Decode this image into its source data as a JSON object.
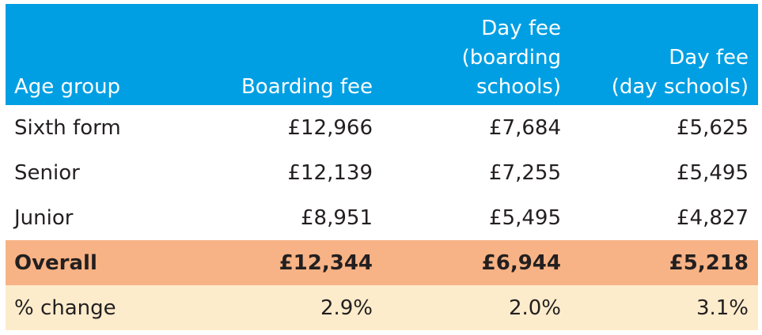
{
  "table": {
    "headers": [
      {
        "lines": [
          "Age group"
        ]
      },
      {
        "lines": [
          "Boarding fee"
        ]
      },
      {
        "lines": [
          "Day fee",
          "(boarding",
          "schools)"
        ]
      },
      {
        "lines": [
          "Day fee",
          "(day schools)"
        ]
      }
    ],
    "rows": [
      {
        "label": "Sixth form",
        "boarding_fee": "£12,966",
        "day_fee_boarding": "£7,684",
        "day_fee_day": "£5,625"
      },
      {
        "label": "Senior",
        "boarding_fee": "£12,139",
        "day_fee_boarding": "£7,255",
        "day_fee_day": "£5,495"
      },
      {
        "label": "Junior",
        "boarding_fee": "£8,951",
        "day_fee_boarding": "£5,495",
        "day_fee_day": "£4,827"
      }
    ],
    "overall": {
      "label": "Overall",
      "boarding_fee": "£12,344",
      "day_fee_boarding": "£6,944",
      "day_fee_day": "£5,218"
    },
    "change": {
      "label": "% change",
      "boarding_fee": "2.9%",
      "day_fee_boarding": "2.0%",
      "day_fee_day": "3.1%"
    }
  },
  "colors": {
    "header_bg": "#009fe3",
    "overall_bg": "#f7b385",
    "change_bg": "#fdeccc",
    "text": "#231f20"
  }
}
